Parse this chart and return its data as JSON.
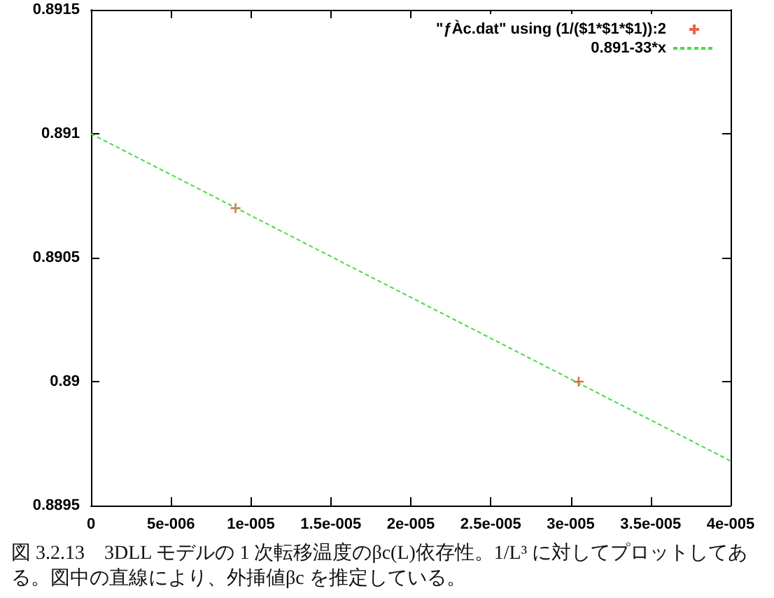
{
  "chart_data": {
    "type": "scatter",
    "xlim": [
      0,
      4e-05
    ],
    "ylim": [
      0.8895,
      0.8915
    ],
    "xticks": [
      0,
      {
        "value": 5e-06,
        "label": "5e-006"
      },
      {
        "value": 1e-05,
        "label": "1e-005"
      },
      {
        "value": 1.5e-05,
        "label": "1.5e-005"
      },
      {
        "value": 2e-05,
        "label": "2e-005"
      },
      {
        "value": 2.5e-05,
        "label": "2.5e-005"
      },
      {
        "value": 3e-05,
        "label": "3e-005"
      },
      {
        "value": 3.5e-05,
        "label": "3.5e-005"
      },
      {
        "value": 4e-05,
        "label": "4e-005"
      }
    ],
    "yticks": [
      0.8895,
      0.89,
      0.8905,
      0.891,
      0.8915
    ],
    "series": [
      {
        "name": "\"ƒÀc.dat\" using (1/($1*$1*$1)):2",
        "color": "#e83a1a",
        "marker": "cross",
        "x": [
          9.04e-06,
          3.05e-05
        ],
        "values": [
          0.8907,
          0.89
        ]
      },
      {
        "name": "0.891-33*x",
        "type": "line",
        "color": "#44dd44",
        "line_style": "dashed",
        "marker": "none",
        "x": [
          0,
          4e-05
        ],
        "values": [
          0.891,
          0.88968
        ]
      }
    ],
    "legend": "top right",
    "grid": false,
    "annotations": [
      "図 3.2.13　3DLL モデルの 1 次転移温度のβc(L)依存性。1/L³ に対してプロットしてある。図中の直線により、外挿値βc を推定している。"
    ]
  }
}
